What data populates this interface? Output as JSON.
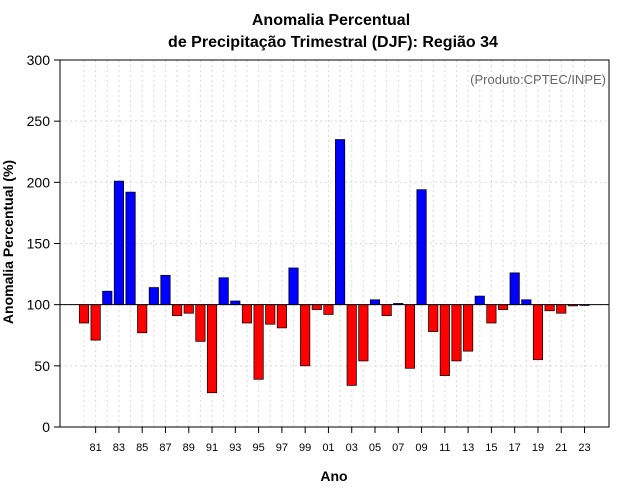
{
  "chart_data": {
    "type": "bar",
    "title_line1": "Anomalia Percentual",
    "title_line2": "de Precipitação Trimestral (DJF): Região 34",
    "credit": "(Produto:CPTEC/INPE)",
    "xlabel": "Ano",
    "ylabel": "Anomalia Percentual (%)",
    "ylim": [
      0,
      300
    ],
    "baseline": 100,
    "yticks": [
      0,
      50,
      100,
      150,
      200,
      250,
      300
    ],
    "ytick_labels": [
      "0",
      "50",
      "100",
      "150",
      "200",
      "250",
      "300"
    ],
    "colors": {
      "above": "#0000ff",
      "below": "#ff0000"
    },
    "categories": [
      "80",
      "81",
      "82",
      "83",
      "84",
      "85",
      "86",
      "87",
      "88",
      "89",
      "90",
      "91",
      "92",
      "93",
      "94",
      "95",
      "96",
      "97",
      "98",
      "99",
      "00",
      "01",
      "02",
      "03",
      "04",
      "05",
      "06",
      "07",
      "08",
      "09",
      "10",
      "11",
      "12",
      "13",
      "14",
      "15",
      "16",
      "17",
      "18",
      "19",
      "20",
      "21",
      "22",
      "23"
    ],
    "values": [
      85,
      71,
      111,
      201,
      192,
      77,
      114,
      124,
      91,
      93,
      70,
      28,
      122,
      103,
      85,
      39,
      84,
      81,
      130,
      50,
      96,
      92,
      235,
      34,
      54,
      104,
      91,
      101,
      48,
      194,
      78,
      42,
      54,
      62,
      107,
      85,
      96,
      126,
      104,
      55,
      95,
      93,
      99,
      100
    ],
    "xtick_labels": [
      "81",
      "83",
      "85",
      "87",
      "89",
      "91",
      "93",
      "95",
      "97",
      "99",
      "01",
      "03",
      "05",
      "07",
      "09",
      "11",
      "13",
      "15",
      "17",
      "19",
      "21",
      "23"
    ],
    "grid": true
  }
}
